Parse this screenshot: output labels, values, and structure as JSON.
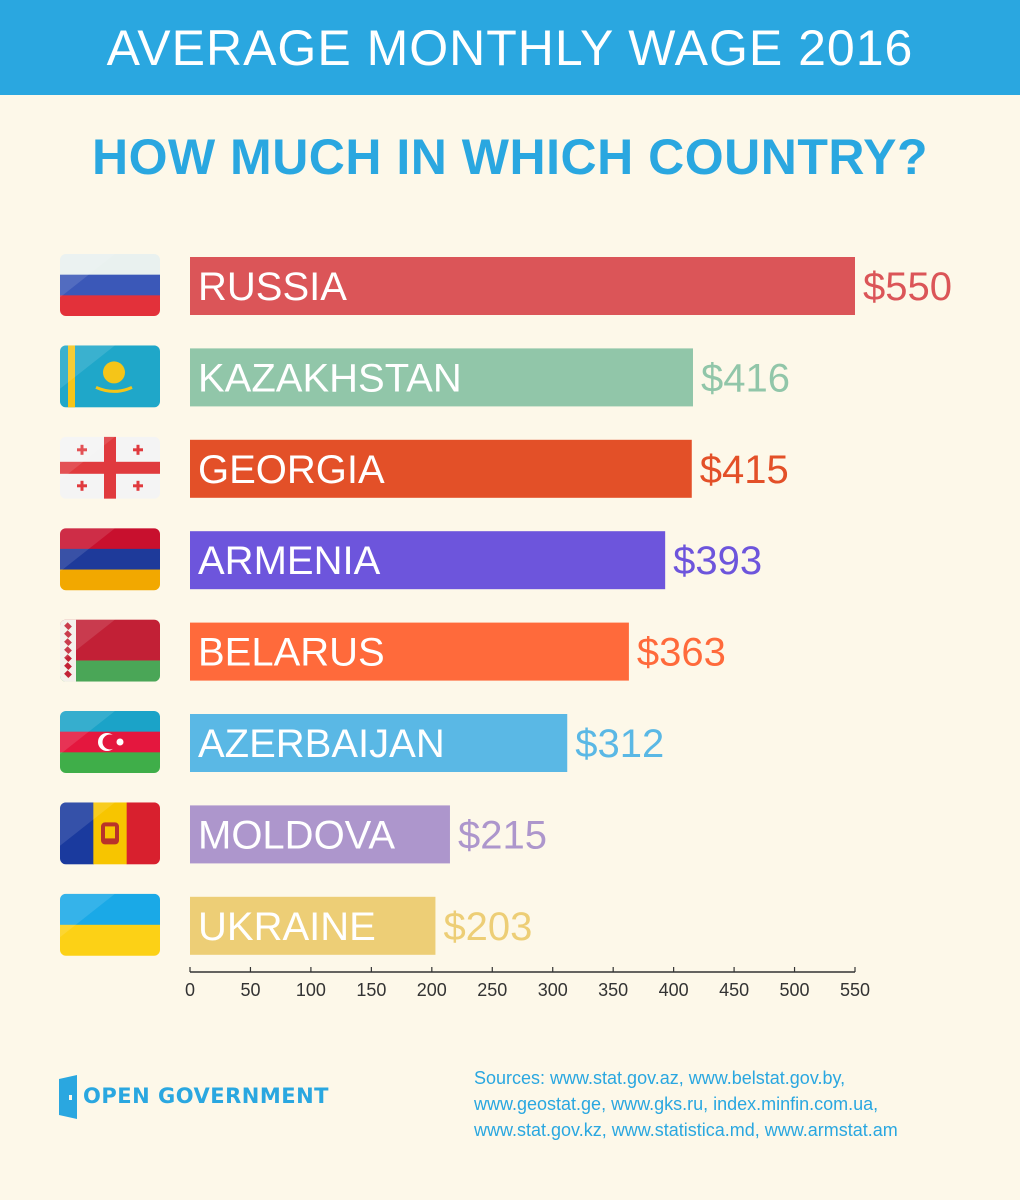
{
  "header": {
    "title": "AVERAGE MONTHLY WAGE  2016"
  },
  "subtitle": "HOW MUCH IN WHICH COUNTRY?",
  "chart_data": {
    "type": "bar",
    "orientation": "horizontal",
    "categories": [
      "RUSSIA",
      "KAZAKHSTAN",
      "GEORGIA",
      "ARMENIA",
      "BELARUS",
      "AZERBAIJAN",
      "MOLDOVA",
      "UKRAINE"
    ],
    "values": [
      550,
      416,
      415,
      393,
      363,
      312,
      215,
      203
    ],
    "value_labels": [
      "$550",
      "$416",
      "$415",
      "$393",
      "$363",
      "$312",
      "$215",
      "$203"
    ],
    "colors": [
      "#db5558",
      "#91c6a9",
      "#e35028",
      "#6d55dc",
      "#ff6a3b",
      "#5ab8e5",
      "#ad96cc",
      "#edce76"
    ],
    "xlim": [
      0,
      550
    ],
    "xticks": [
      0,
      50,
      100,
      150,
      200,
      250,
      300,
      350,
      400,
      450,
      500,
      550
    ],
    "grid": false,
    "legend": "none"
  },
  "flags": [
    "russia-flag-icon",
    "kazakhstan-flag-icon",
    "georgia-flag-icon",
    "armenia-flag-icon",
    "belarus-flag-icon",
    "azerbaijan-flag-icon",
    "moldova-flag-icon",
    "ukraine-flag-icon"
  ],
  "footer": {
    "logo_text": "OPEN GOVERNMENT",
    "sources_lines": [
      "Sources:  www.stat.gov.az, www.belstat.gov.by,",
      "www.geostat.ge, www.gks.ru, index.minfin.com.ua,",
      "www.stat.gov.kz, www.statistica.md, www.armstat.am"
    ]
  }
}
